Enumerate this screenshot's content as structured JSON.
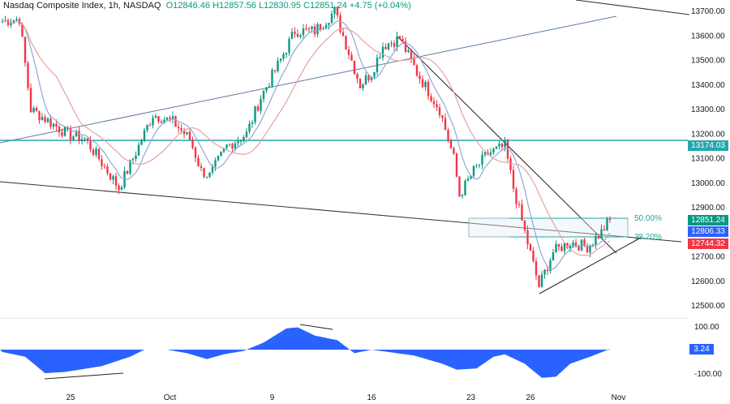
{
  "header": {
    "title": "Nasdaq Composite Index, 1h, NASDAQ",
    "open": "O12846.46",
    "high": "H12857.56",
    "low": "L12830.95",
    "close": "C12851.24",
    "change": "+4.75 (+0.04%)"
  },
  "colors": {
    "up": "#089981",
    "down": "#f23645",
    "blue": "#2962ff",
    "cyan": "#26a6ad",
    "osc": "#2962ff"
  },
  "chart_data": {
    "type": "candlestick",
    "title": "Nasdaq Composite Index, 1h",
    "ylim": [
      12450,
      13760
    ],
    "y_ticks": [
      "13700.00",
      "13600.00",
      "13500.00",
      "13400.00",
      "13300.00",
      "13200.00",
      "13100.00",
      "13000.00",
      "12900.00",
      "12700.00",
      "12600.00",
      "12500.00"
    ],
    "x_ticks": [
      {
        "bar": 24,
        "label": "25"
      },
      {
        "bar": 59,
        "label": "Oct"
      },
      {
        "bar": 95,
        "label": "9"
      },
      {
        "bar": 130,
        "label": "16"
      },
      {
        "bar": 165,
        "label": "23"
      },
      {
        "bar": 186,
        "label": "26"
      },
      {
        "bar": 217,
        "label": "Nov"
      }
    ],
    "close_keyframes": [
      [
        0,
        13660
      ],
      [
        6,
        13670
      ],
      [
        10,
        13300
      ],
      [
        14,
        13270
      ],
      [
        23,
        13200
      ],
      [
        29,
        13180
      ],
      [
        34,
        13100
      ],
      [
        41,
        12980
      ],
      [
        46,
        13100
      ],
      [
        53,
        13280
      ],
      [
        60,
        13250
      ],
      [
        66,
        13180
      ],
      [
        70,
        13050
      ],
      [
        73,
        13030
      ],
      [
        79,
        13150
      ],
      [
        86,
        13200
      ],
      [
        91,
        13350
      ],
      [
        97,
        13480
      ],
      [
        103,
        13620
      ],
      [
        110,
        13620
      ],
      [
        117,
        13700
      ],
      [
        120,
        13600
      ],
      [
        126,
        13400
      ],
      [
        130,
        13450
      ],
      [
        134,
        13560
      ],
      [
        140,
        13590
      ],
      [
        146,
        13450
      ],
      [
        154,
        13300
      ],
      [
        159,
        13100
      ],
      [
        161,
        12950
      ],
      [
        166,
        13050
      ],
      [
        171,
        13120
      ],
      [
        177,
        13150
      ],
      [
        180,
        12980
      ],
      [
        184,
        12800
      ],
      [
        189,
        12580
      ],
      [
        194,
        12720
      ],
      [
        200,
        12760
      ],
      [
        206,
        12740
      ],
      [
        211,
        12800
      ],
      [
        214,
        12851
      ]
    ],
    "horizontal_level": {
      "value": 13174.03,
      "label": "13174.03"
    },
    "fib_levels": [
      {
        "label": "50.00%",
        "value": 12866
      },
      {
        "label": "38.20%",
        "value": 12790
      }
    ],
    "price_badges": [
      {
        "label": "12851.24",
        "color": "#089981"
      },
      {
        "label": "12806.33",
        "color": "#2962ff"
      },
      {
        "label": "12744.32",
        "color": "#f23645"
      }
    ],
    "oscillator": {
      "y_ticks": [
        "100.00",
        "-100.00"
      ],
      "value_label": "3.24",
      "ylim": [
        -160,
        130
      ],
      "keyframes": [
        [
          0,
          -10
        ],
        [
          8,
          -30
        ],
        [
          15,
          -100
        ],
        [
          22,
          -95
        ],
        [
          35,
          -70
        ],
        [
          45,
          -30
        ],
        [
          50,
          0
        ],
        [
          58,
          0
        ],
        [
          65,
          -15
        ],
        [
          72,
          -40
        ],
        [
          78,
          -20
        ],
        [
          85,
          -5
        ],
        [
          92,
          30
        ],
        [
          100,
          90
        ],
        [
          104,
          95
        ],
        [
          110,
          60
        ],
        [
          118,
          40
        ],
        [
          124,
          -15
        ],
        [
          130,
          0
        ],
        [
          136,
          -10
        ],
        [
          145,
          -25
        ],
        [
          155,
          -60
        ],
        [
          160,
          -85
        ],
        [
          167,
          -80
        ],
        [
          173,
          -30
        ],
        [
          177,
          -20
        ],
        [
          184,
          -60
        ],
        [
          190,
          -120
        ],
        [
          195,
          -115
        ],
        [
          200,
          -60
        ],
        [
          207,
          -30
        ],
        [
          214,
          3.24
        ]
      ]
    }
  }
}
